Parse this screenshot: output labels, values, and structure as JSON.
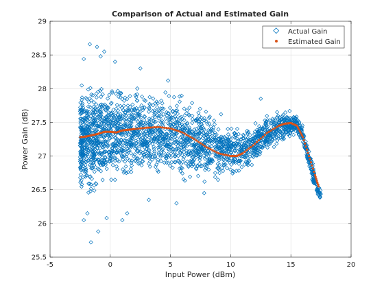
{
  "chart_data": {
    "type": "scatter",
    "title": "Comparison of Actual and Estimated Gain",
    "xlabel": "Input Power (dBm)",
    "ylabel": "Power Gain (dB)",
    "xlim": [
      -5,
      20
    ],
    "ylim": [
      25.5,
      29
    ],
    "xticks": [
      "-5",
      "0",
      "5",
      "10",
      "15",
      "20"
    ],
    "yticks": [
      "25.5",
      "26",
      "26.5",
      "27",
      "27.5",
      "28",
      "28.5",
      "29"
    ],
    "grid": true,
    "legend_position": "top-right",
    "series": [
      {
        "name": "Actual Gain",
        "marker": "diamond",
        "color": "#0072bd",
        "envelope": {
          "x": [
            -2.5,
            -2,
            -1,
            0,
            1,
            3,
            5,
            7,
            9,
            10,
            11,
            12,
            13,
            14,
            15,
            15.5,
            16,
            16.5,
            17,
            17.5
          ],
          "lower": [
            26.3,
            26.2,
            26.4,
            26.5,
            26.55,
            26.6,
            26.6,
            26.55,
            26.6,
            26.65,
            26.7,
            26.85,
            27.05,
            27.15,
            27.25,
            27.3,
            27.1,
            26.8,
            26.45,
            26.3
          ],
          "upper": [
            28.2,
            28.2,
            28.2,
            28.15,
            28.1,
            28.05,
            28.0,
            27.9,
            27.6,
            27.5,
            27.45,
            27.55,
            27.65,
            27.7,
            27.7,
            27.65,
            27.5,
            27.1,
            26.8,
            26.5
          ]
        },
        "outliers": [
          {
            "x": -2.2,
            "y": 26.05
          },
          {
            "x": -1.6,
            "y": 25.72
          },
          {
            "x": -1.0,
            "y": 25.88
          },
          {
            "x": -0.3,
            "y": 26.08
          },
          {
            "x": 1.0,
            "y": 26.05
          },
          {
            "x": 1.4,
            "y": 26.15
          },
          {
            "x": -1.7,
            "y": 28.66
          },
          {
            "x": -1.1,
            "y": 28.62
          },
          {
            "x": -0.5,
            "y": 28.55
          },
          {
            "x": -0.8,
            "y": 28.48
          },
          {
            "x": -2.2,
            "y": 28.44
          },
          {
            "x": 4.8,
            "y": 28.12
          },
          {
            "x": 9.2,
            "y": 27.62
          },
          {
            "x": 12.5,
            "y": 27.85
          },
          {
            "x": 2.5,
            "y": 28.3
          },
          {
            "x": 5.5,
            "y": 26.3
          },
          {
            "x": 0.4,
            "y": 28.4
          },
          {
            "x": -1.9,
            "y": 26.15
          },
          {
            "x": 3.2,
            "y": 26.35
          },
          {
            "x": 7.8,
            "y": 26.45
          }
        ]
      },
      {
        "name": "Estimated Gain",
        "marker": "dot",
        "color": "#d95319",
        "x": [
          -2.5,
          -2,
          -1.5,
          -1,
          -0.5,
          0,
          0.5,
          1,
          1.5,
          2,
          3,
          4,
          5,
          6,
          7,
          8,
          9,
          10,
          10.5,
          11,
          12,
          13,
          14,
          14.5,
          15,
          15.5,
          16,
          16.5,
          17,
          17.3
        ],
        "y": [
          27.28,
          27.29,
          27.31,
          27.33,
          27.36,
          27.36,
          27.35,
          27.38,
          27.39,
          27.4,
          27.42,
          27.43,
          27.41,
          27.35,
          27.25,
          27.13,
          27.04,
          27.0,
          27.0,
          27.04,
          27.18,
          27.34,
          27.45,
          27.48,
          27.49,
          27.45,
          27.28,
          27.0,
          26.72,
          26.55
        ]
      }
    ]
  }
}
